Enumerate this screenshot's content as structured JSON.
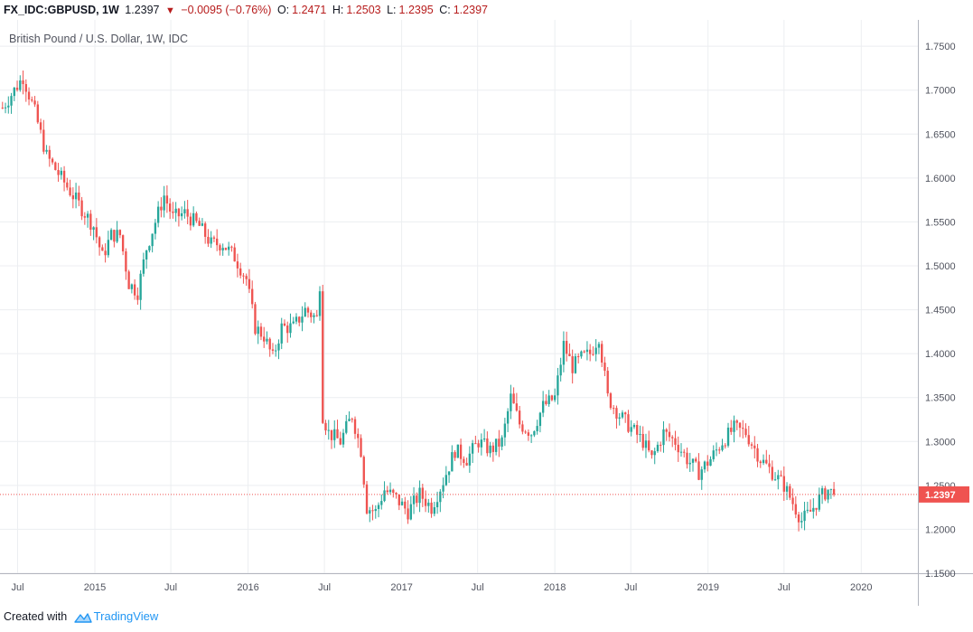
{
  "header": {
    "symbol": "FX_IDC:GBPUSD, 1W",
    "last": "1.2397",
    "change": "−0.0095 (−0.76%)",
    "o_label": "O:",
    "o_value": "1.2471",
    "h_label": "H:",
    "h_value": "1.2503",
    "l_label": "L:",
    "l_value": "1.2395",
    "c_label": "C:",
    "c_value": "1.2397"
  },
  "footer": {
    "created_with": "Created with",
    "brand": "TradingView"
  },
  "colors": {
    "up": "#26a69a",
    "down": "#ef5350",
    "grid": "#eceef1",
    "axis_text": "#50535e",
    "price_line": "#ef5350",
    "price_label_bg": "#ef5350"
  },
  "icons": {
    "change_direction": "down-triangle-icon",
    "logo": "tradingview-logo-icon"
  },
  "chart_data": {
    "type": "candlestick",
    "title": "British Pound / U.S. Dollar, 1W, IDC",
    "xlabel": "",
    "ylabel": "",
    "ylim": [
      1.15,
      1.78
    ],
    "y_ticks": [
      "1.1500",
      "1.2000",
      "1.2500",
      "1.3000",
      "1.3500",
      "1.4000",
      "1.4500",
      "1.5000",
      "1.5500",
      "1.6000",
      "1.6500",
      "1.7000",
      "1.7500"
    ],
    "x_ticks": [
      {
        "date": "2014-07-01",
        "label": "Jul"
      },
      {
        "date": "2015-01-01",
        "label": "2015"
      },
      {
        "date": "2015-07-01",
        "label": "Jul"
      },
      {
        "date": "2016-01-01",
        "label": "2016"
      },
      {
        "date": "2016-07-01",
        "label": "Jul"
      },
      {
        "date": "2017-01-01",
        "label": "2017"
      },
      {
        "date": "2017-07-01",
        "label": "Jul"
      },
      {
        "date": "2018-01-01",
        "label": "2018"
      },
      {
        "date": "2018-07-01",
        "label": "Jul"
      },
      {
        "date": "2019-01-01",
        "label": "2019"
      },
      {
        "date": "2019-07-01",
        "label": "Jul"
      },
      {
        "date": "2020-01-01",
        "label": "2020"
      }
    ],
    "last_price": 1.2397,
    "last_price_label": "1.2397",
    "grid": true,
    "x_range": [
      "2014-05-20",
      "2020-05-15"
    ],
    "close_path": [
      [
        "2014-05-26",
        1.68
      ],
      [
        "2014-06-23",
        1.7
      ],
      [
        "2014-07-14",
        1.715
      ],
      [
        "2014-08-11",
        1.675
      ],
      [
        "2014-09-08",
        1.625
      ],
      [
        "2014-10-06",
        1.605
      ],
      [
        "2014-11-03",
        1.585
      ],
      [
        "2014-12-01",
        1.565
      ],
      [
        "2014-12-29",
        1.545
      ],
      [
        "2015-01-19",
        1.51
      ],
      [
        "2015-02-09",
        1.535
      ],
      [
        "2015-03-02",
        1.535
      ],
      [
        "2015-03-23",
        1.48
      ],
      [
        "2015-04-13",
        1.47
      ],
      [
        "2015-05-04",
        1.52
      ],
      [
        "2015-05-25",
        1.55
      ],
      [
        "2015-06-15",
        1.58
      ],
      [
        "2015-07-06",
        1.555
      ],
      [
        "2015-08-03",
        1.56
      ],
      [
        "2015-09-07",
        1.545
      ],
      [
        "2015-10-05",
        1.525
      ],
      [
        "2015-11-02",
        1.525
      ],
      [
        "2015-11-30",
        1.51
      ],
      [
        "2015-12-28",
        1.485
      ],
      [
        "2016-01-18",
        1.43
      ],
      [
        "2016-02-08",
        1.42
      ],
      [
        "2016-02-29",
        1.395
      ],
      [
        "2016-03-21",
        1.43
      ],
      [
        "2016-04-18",
        1.43
      ],
      [
        "2016-05-16",
        1.45
      ],
      [
        "2016-06-13",
        1.44
      ],
      [
        "2016-06-20",
        1.48
      ],
      [
        "2016-06-27",
        1.33
      ],
      [
        "2016-07-11",
        1.31
      ],
      [
        "2016-08-08",
        1.3
      ],
      [
        "2016-09-05",
        1.33
      ],
      [
        "2016-09-26",
        1.29
      ],
      [
        "2016-10-10",
        1.225
      ],
      [
        "2016-10-31",
        1.22
      ],
      [
        "2016-11-21",
        1.245
      ],
      [
        "2016-12-19",
        1.235
      ],
      [
        "2017-01-16",
        1.22
      ],
      [
        "2017-02-13",
        1.24
      ],
      [
        "2017-03-13",
        1.225
      ],
      [
        "2017-04-10",
        1.255
      ],
      [
        "2017-05-08",
        1.29
      ],
      [
        "2017-06-05",
        1.28
      ],
      [
        "2017-07-03",
        1.3
      ],
      [
        "2017-07-31",
        1.29
      ],
      [
        "2017-08-28",
        1.3
      ],
      [
        "2017-09-18",
        1.35
      ],
      [
        "2017-10-09",
        1.32
      ],
      [
        "2017-11-06",
        1.31
      ],
      [
        "2017-12-04",
        1.34
      ],
      [
        "2018-01-01",
        1.35
      ],
      [
        "2018-01-22",
        1.41
      ],
      [
        "2018-02-12",
        1.385
      ],
      [
        "2018-03-05",
        1.395
      ],
      [
        "2018-03-26",
        1.4
      ],
      [
        "2018-04-16",
        1.42
      ],
      [
        "2018-05-07",
        1.35
      ],
      [
        "2018-06-04",
        1.33
      ],
      [
        "2018-07-02",
        1.315
      ],
      [
        "2018-07-30",
        1.3
      ],
      [
        "2018-08-20",
        1.28
      ],
      [
        "2018-09-17",
        1.31
      ],
      [
        "2018-10-15",
        1.3
      ],
      [
        "2018-11-12",
        1.28
      ],
      [
        "2018-12-10",
        1.265
      ],
      [
        "2019-01-07",
        1.28
      ],
      [
        "2019-02-04",
        1.3
      ],
      [
        "2019-03-04",
        1.315
      ],
      [
        "2019-04-01",
        1.31
      ],
      [
        "2019-05-06",
        1.28
      ],
      [
        "2019-06-03",
        1.265
      ],
      [
        "2019-07-01",
        1.25
      ],
      [
        "2019-07-22",
        1.23
      ],
      [
        "2019-08-12",
        1.21
      ],
      [
        "2019-09-02",
        1.22
      ],
      [
        "2019-09-23",
        1.235
      ],
      [
        "2019-10-14",
        1.245
      ],
      [
        "2019-10-28",
        1.2397
      ]
    ]
  }
}
